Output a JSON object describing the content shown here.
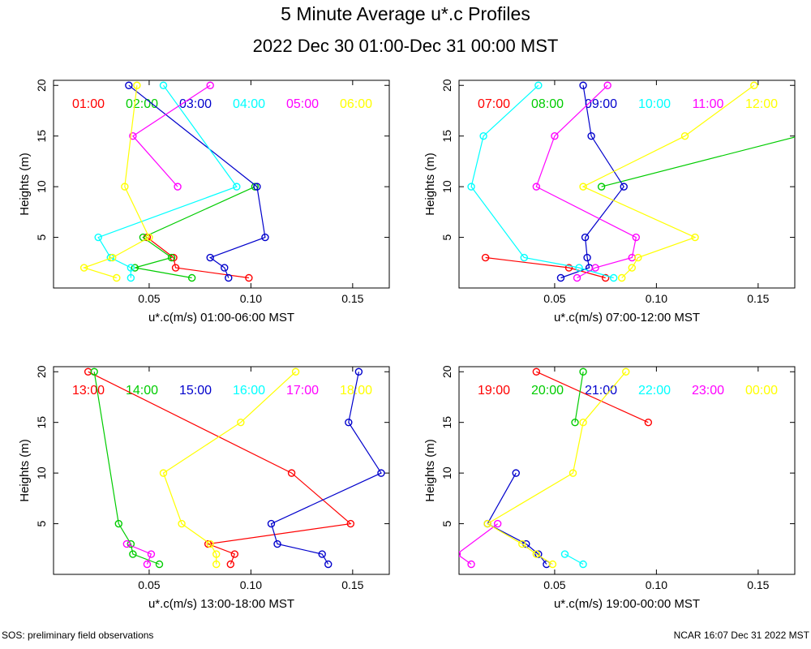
{
  "title": "5 Minute Average u*.c Profiles",
  "subtitle": "2022 Dec 30 01:00-Dec 31 00:00 MST",
  "footer_left": "SOS: preliminary field observations",
  "footer_right": "NCAR 16:07 Dec 31 2022 MST",
  "chart_data": [
    {
      "type": "line",
      "xlabel": "u*.c(m/s) 01:00-06:00 MST",
      "ylabel": "Heights (m)",
      "xlim": [
        0.003,
        0.168
      ],
      "ylim": [
        0,
        20.5
      ],
      "xticks": [
        "0.05",
        "0.10",
        "0.15"
      ],
      "yticks": [
        "5",
        "10",
        "15",
        "20"
      ],
      "series": [
        {
          "name": "01:00",
          "color": "#ff0000",
          "points": [
            [
              0.099,
              1
            ],
            [
              0.063,
              2
            ],
            [
              0.062,
              3
            ],
            [
              0.049,
              5
            ]
          ]
        },
        {
          "name": "02:00",
          "color": "#00cc00",
          "points": [
            [
              0.071,
              1
            ],
            [
              0.043,
              2
            ],
            [
              0.061,
              3
            ],
            [
              0.047,
              5
            ],
            [
              0.102,
              10
            ]
          ]
        },
        {
          "name": "03:00",
          "color": "#0000cc",
          "points": [
            [
              0.04,
              20
            ],
            [
              0.103,
              10
            ],
            [
              0.107,
              5
            ],
            [
              0.08,
              3
            ],
            [
              0.087,
              2
            ],
            [
              0.089,
              1
            ]
          ]
        },
        {
          "name": "04:00",
          "color": "#00ffff",
          "points": [
            [
              0.057,
              20
            ],
            [
              0.093,
              10
            ],
            [
              0.025,
              5
            ],
            [
              0.031,
              3
            ],
            [
              0.041,
              2
            ],
            [
              0.041,
              1
            ]
          ]
        },
        {
          "name": "05:00",
          "color": "#ff00ff",
          "points": [
            [
              0.08,
              20
            ],
            [
              0.042,
              15
            ],
            [
              0.064,
              10
            ]
          ]
        },
        {
          "name": "06:00",
          "color": "#ffff00",
          "points": [
            [
              0.044,
              20
            ],
            [
              0.038,
              10
            ],
            [
              0.05,
              5
            ],
            [
              0.032,
              3
            ],
            [
              0.018,
              2
            ],
            [
              0.034,
              1
            ]
          ]
        }
      ]
    },
    {
      "type": "line",
      "xlabel": "u*.c(m/s) 07:00-12:00 MST",
      "ylabel": "Heights (m)",
      "xlim": [
        0.003,
        0.168
      ],
      "ylim": [
        0,
        20.5
      ],
      "xticks": [
        "0.05",
        "0.10",
        "0.15"
      ],
      "yticks": [
        "5",
        "10",
        "15",
        "20"
      ],
      "series": [
        {
          "name": "07:00",
          "color": "#ff0000",
          "points": [
            [
              0.016,
              3
            ],
            [
              0.057,
              2
            ],
            [
              0.075,
              1
            ]
          ]
        },
        {
          "name": "08:00",
          "color": "#00cc00",
          "points": [
            [
              0.17,
              15
            ],
            [
              0.073,
              10
            ]
          ]
        },
        {
          "name": "09:00",
          "color": "#0000cc",
          "points": [
            [
              0.064,
              20
            ],
            [
              0.068,
              15
            ],
            [
              0.084,
              10
            ],
            [
              0.065,
              5
            ],
            [
              0.066,
              3
            ],
            [
              0.067,
              2
            ],
            [
              0.053,
              1
            ]
          ]
        },
        {
          "name": "10:00",
          "color": "#00ffff",
          "points": [
            [
              0.042,
              20
            ],
            [
              0.015,
              15
            ],
            [
              0.009,
              10
            ],
            [
              0.035,
              3
            ],
            [
              0.062,
              2
            ],
            [
              0.079,
              1
            ]
          ]
        },
        {
          "name": "11:00",
          "color": "#ff00ff",
          "points": [
            [
              0.076,
              20
            ],
            [
              0.05,
              15
            ],
            [
              0.041,
              10
            ],
            [
              0.09,
              5
            ],
            [
              0.088,
              3
            ],
            [
              0.07,
              2
            ],
            [
              0.061,
              1
            ]
          ]
        },
        {
          "name": "12:00",
          "color": "#ffff00",
          "points": [
            [
              0.148,
              20
            ],
            [
              0.114,
              15
            ],
            [
              0.064,
              10
            ],
            [
              0.119,
              5
            ],
            [
              0.091,
              3
            ],
            [
              0.088,
              2
            ],
            [
              0.083,
              1
            ]
          ]
        }
      ]
    },
    {
      "type": "line",
      "xlabel": "u*.c(m/s) 13:00-18:00 MST",
      "ylabel": "Heights (m)",
      "xlim": [
        0.003,
        0.168
      ],
      "ylim": [
        0,
        20.5
      ],
      "xticks": [
        "0.05",
        "0.10",
        "0.15"
      ],
      "yticks": [
        "5",
        "10",
        "15",
        "20"
      ],
      "series": [
        {
          "name": "13:00",
          "color": "#ff0000",
          "points": [
            [
              0.02,
              20
            ],
            [
              0.12,
              10
            ],
            [
              0.149,
              5
            ],
            [
              0.079,
              3
            ],
            [
              0.092,
              2
            ],
            [
              0.09,
              1
            ]
          ]
        },
        {
          "name": "14:00",
          "color": "#00cc00",
          "points": [
            [
              0.023,
              20
            ],
            [
              0.035,
              5
            ],
            [
              0.041,
              3
            ],
            [
              0.042,
              2
            ],
            [
              0.055,
              1
            ]
          ]
        },
        {
          "name": "15:00",
          "color": "#0000cc",
          "points": [
            [
              0.153,
              20
            ],
            [
              0.148,
              15
            ],
            [
              0.164,
              10
            ],
            [
              0.11,
              5
            ],
            [
              0.113,
              3
            ],
            [
              0.135,
              2
            ],
            [
              0.138,
              1
            ]
          ]
        },
        {
          "name": "16:00",
          "color": "#00ffff",
          "points": []
        },
        {
          "name": "17:00",
          "color": "#ff00ff",
          "points": [
            [
              0.039,
              3
            ],
            [
              0.051,
              2
            ],
            [
              0.049,
              1
            ]
          ]
        },
        {
          "name": "18:00",
          "color": "#ffff00",
          "points": [
            [
              0.122,
              20
            ],
            [
              0.095,
              15
            ],
            [
              0.057,
              10
            ],
            [
              0.066,
              5
            ],
            [
              0.08,
              3
            ],
            [
              0.083,
              2
            ],
            [
              0.083,
              1
            ]
          ]
        }
      ]
    },
    {
      "type": "line",
      "xlabel": "u*.c(m/s) 19:00-00:00 MST",
      "ylabel": "Heights (m)",
      "xlim": [
        0.003,
        0.168
      ],
      "ylim": [
        0,
        20.5
      ],
      "xticks": [
        "0.05",
        "0.10",
        "0.15"
      ],
      "yticks": [
        "5",
        "10",
        "15",
        "20"
      ],
      "series": [
        {
          "name": "19:00",
          "color": "#ff0000",
          "points": [
            [
              0.041,
              20
            ],
            [
              0.096,
              15
            ]
          ]
        },
        {
          "name": "20:00",
          "color": "#00cc00",
          "points": [
            [
              0.064,
              20
            ],
            [
              0.06,
              15
            ]
          ]
        },
        {
          "name": "21:00",
          "color": "#0000cc",
          "points": [
            [
              0.031,
              10
            ],
            [
              0.017,
              5
            ],
            [
              0.036,
              3
            ],
            [
              0.042,
              2
            ],
            [
              0.046,
              1
            ]
          ]
        },
        {
          "name": "22:00",
          "color": "#00ffff",
          "points": [
            [
              0.055,
              2
            ],
            [
              0.064,
              1
            ]
          ]
        },
        {
          "name": "23:00",
          "color": "#ff00ff",
          "points": [
            [
              0.022,
              5
            ],
            [
              0.002,
              2
            ],
            [
              0.009,
              1
            ]
          ]
        },
        {
          "name": "00:00",
          "color": "#ffff00",
          "points": [
            [
              0.085,
              20
            ],
            [
              0.064,
              15
            ],
            [
              0.059,
              10
            ],
            [
              0.017,
              5
            ],
            [
              0.034,
              3
            ],
            [
              0.041,
              2
            ],
            [
              0.049,
              1
            ]
          ]
        }
      ]
    }
  ]
}
